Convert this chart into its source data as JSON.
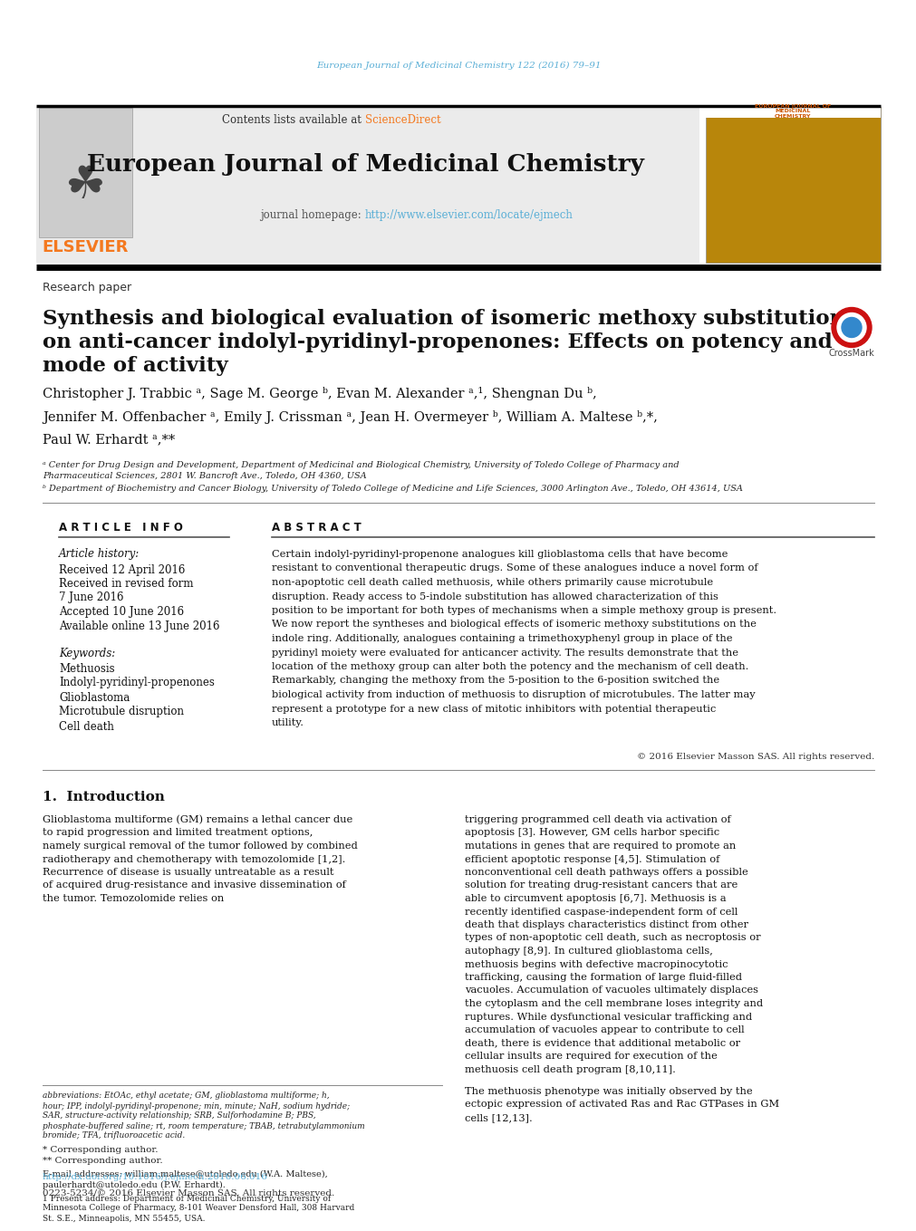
{
  "bg_color": "#ffffff",
  "top_journal_line": "European Journal of Medicinal Chemistry 122 (2016) 79–91",
  "top_journal_color": "#5bafd6",
  "contents_text": "Contents lists available at ",
  "sciencedirect_text": "ScienceDirect",
  "sciencedirect_color": "#f47920",
  "journal_title": "European Journal of Medicinal Chemistry",
  "journal_homepage_prefix": "journal homepage: ",
  "journal_url": "http://www.elsevier.com/locate/ejmech",
  "journal_url_color": "#5bafd6",
  "elsevier_color": "#f47920",
  "elsevier_text": "ELSEVIER",
  "header_bg": "#ebebeb",
  "paper_type": "Research paper",
  "article_title_line1": "Synthesis and biological evaluation of isomeric methoxy substitutions",
  "article_title_line2": "on anti-cancer indolyl-pyridinyl-propenones: Effects on potency and",
  "article_title_line3": "mode of activity",
  "affil_a": "ᵃ Center for Drug Design and Development, Department of Medicinal and Biological Chemistry, University of Toledo College of Pharmacy and",
  "affil_a2": "Pharmaceutical Sciences, 2801 W. Bancroft Ave., Toledo, OH 4360, USA",
  "affil_b": "ᵇ Department of Biochemistry and Cancer Biology, University of Toledo College of Medicine and Life Sciences, 3000 Arlington Ave., Toledo, OH 43614, USA",
  "article_info_header": "A R T I C L E   I N F O",
  "abstract_header": "A B S T R A C T",
  "article_history": "Article history:",
  "received": "Received 12 April 2016",
  "revised": "Received in revised form",
  "revised_date": "7 June 2016",
  "accepted": "Accepted 10 June 2016",
  "available": "Available online 13 June 2016",
  "keywords_header": "Keywords:",
  "kw1": "Methuosis",
  "kw2": "Indolyl-pyridinyl-propenones",
  "kw3": "Glioblastoma",
  "kw4": "Microtubule disruption",
  "kw5": "Cell death",
  "abstract_text": "Certain indolyl-pyridinyl-propenone analogues kill glioblastoma cells that have become resistant to conventional therapeutic drugs. Some of these analogues induce a novel form of non-apoptotic cell death called methuosis, while others primarily cause microtubule disruption. Ready access to 5-indole substitution has allowed characterization of this position to be important for both types of mechanisms when a simple methoxy group is present. We now report the syntheses and biological effects of isomeric methoxy substitutions on the indole ring. Additionally, analogues containing a trimethoxyphenyl group in place of the pyridinyl moiety were evaluated for anticancer activity. The results demonstrate that the location of the methoxy group can alter both the potency and the mechanism of cell death. Remarkably, changing the methoxy from the 5-position to the 6-position switched the biological activity from induction of methuosis to disruption of microtubules. The latter may represent a prototype for a new class of mitotic inhibitors with potential therapeutic utility.",
  "copyright_text": "© 2016 Elsevier Masson SAS. All rights reserved.",
  "intro_header": "1.  Introduction",
  "intro_col1": "Glioblastoma multiforme (GM) remains a lethal cancer due to rapid progression and limited treatment options, namely surgical removal of the tumor followed by combined radiotherapy and chemotherapy with temozolomide [1,2]. Recurrence of disease is usually untreatable as a result of acquired drug-resistance and invasive dissemination of the tumor. Temozolomide relies on",
  "intro_col2": "triggering programmed cell death via activation of apoptosis [3]. However, GM cells harbor specific mutations in genes that are required to promote an efficient apoptotic response [4,5]. Stimulation of nonconventional cell death pathways offers a possible solution for treating drug-resistant cancers that are able to circumvent apoptosis [6,7]. Methuosis is a recently identified caspase-independent form of cell death that displays characteristics distinct from other types of non-apoptotic cell death, such as necroptosis or autophagy [8,9]. In cultured glioblastoma cells, methuosis begins with defective macropinocytotic trafficking, causing the formation of large fluid-filled vacuoles. Accumulation of vacuoles ultimately displaces the cytoplasm and the cell membrane loses integrity and ruptures. While dysfunctional vesicular trafficking and accumulation of vacuoles appear to contribute to cell death, there is evidence that additional metabolic or cellular insults are required for execution of the methuosis cell death program [8,10,11].",
  "intro_col2b": "The methuosis phenotype was initially observed by the ectopic expression of activated Ras and Rac GTPases in GM cells [12,13].",
  "footnote_abbrev": "abbreviations: EtOAc, ethyl acetate; GM, glioblastoma multiforme; h, hour; IPP, indolyl-pyridinyl-propenone; min, minute; NaH, sodium hydride; SAR, structure-activity relationship; SRB, Sulforhodamine B; PBS, phosphate-buffered saline; rt, room temperature; TBAB, tetrabutylammonium bromide; TFA, trifluoroacetic acid.",
  "footnote_star": "* Corresponding author.",
  "footnote_2star": "** Corresponding author.",
  "footnote_email": "E-mail addresses: william.maltese@utoledo.edu (W.A. Maltese), paulerhardt@utoledo.edu (P.W. Erhardt).",
  "footnote_1": "1 Present address: Department of Medicinal Chemistry, University of Minnesota College of Pharmacy, 8-101 Weaver Densford Hall, 308 Harvard St. S.E., Minneapolis, MN 55455, USA.",
  "doi_text": "http://dx.doi.org/10.1016/j.ejmech.2016.06.016",
  "issn_text": "0223-5234/© 2016 Elsevier Masson SAS. All rights reserved."
}
